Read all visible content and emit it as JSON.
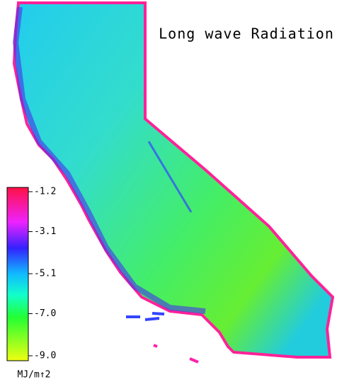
{
  "title": "Long wave Radiation",
  "colorbar": {
    "unit": "MJ/m↑2",
    "lim": [
      -9,
      -1.2
    ],
    "ticks": [
      -1.2,
      -3.1,
      -5.1,
      {
        "value": -7,
        "label": "-7.0"
      },
      {
        "value": -9,
        "label": "-9.0"
      }
    ]
  }
}
